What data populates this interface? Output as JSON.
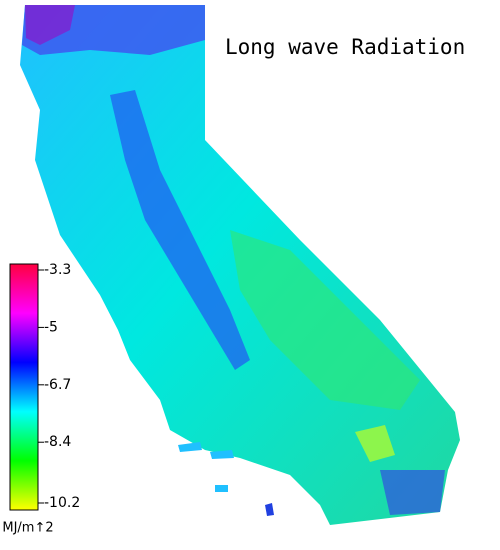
{
  "title": "Long wave Radiation",
  "colorbar": {
    "label": "MJ/m↑2",
    "lim": [
      -10.2,
      -3.3
    ],
    "ticks": [
      -3.3,
      -5.0,
      -6.7,
      -8.4,
      -10.2
    ],
    "colors": [
      "#ffff00",
      "#00ff00",
      "#00ffff",
      "#0000ff",
      "#ff00ff",
      "#ff0040"
    ]
  }
}
